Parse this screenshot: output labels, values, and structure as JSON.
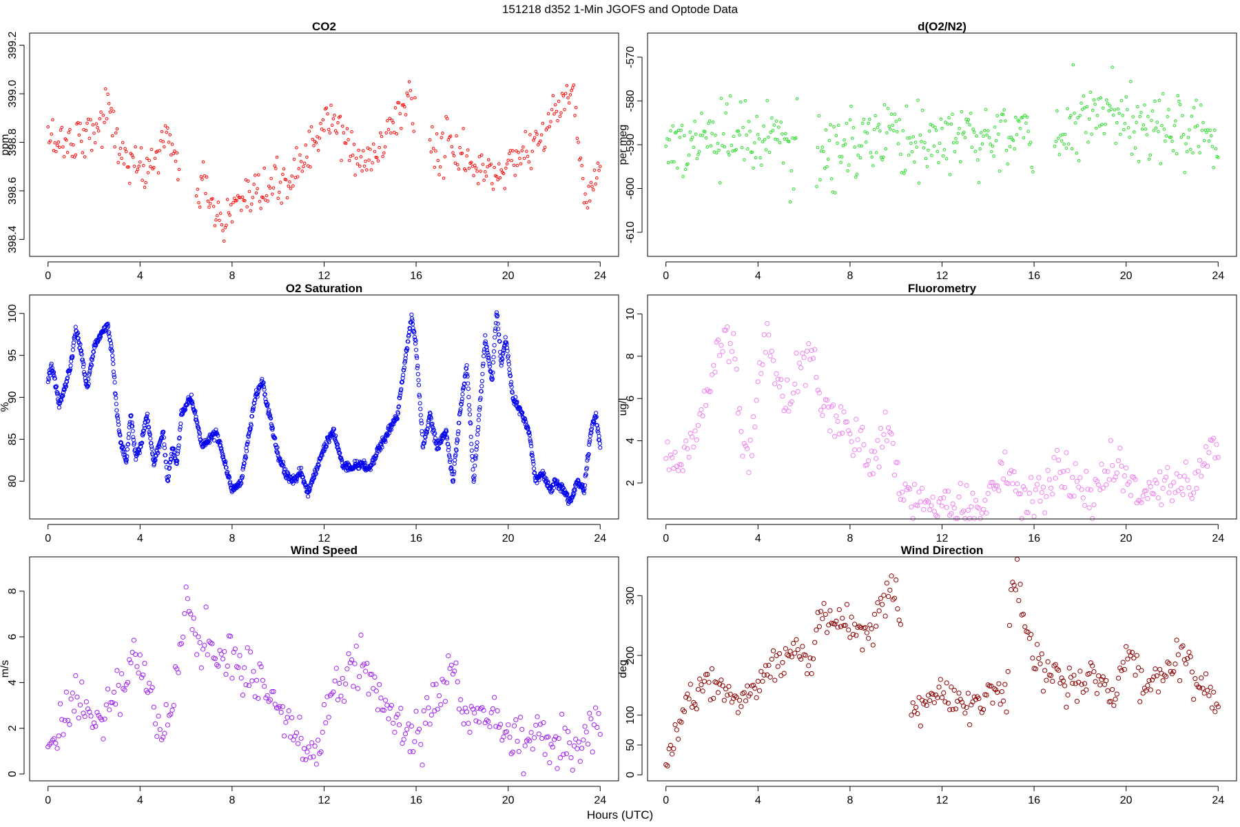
{
  "page": {
    "title": "151218   d352   1-Min  JGOFS and Optode Data",
    "xlabel": "Hours (UTC)"
  },
  "chart_data": [
    {
      "type": "scatter",
      "title": "CO2",
      "xlabel": "",
      "ylabel": "ppm",
      "xlim": [
        -0.8,
        24.8
      ],
      "ylim": [
        398.33,
        399.25
      ],
      "x_ticks": [
        0,
        4,
        8,
        12,
        16,
        20,
        24
      ],
      "y_ticks": [
        398.4,
        398.6,
        398.8,
        399.0,
        399.2
      ],
      "y_tick_labels": [
        "398.4",
        "398.6",
        "398.8",
        "399.0",
        "399.2"
      ],
      "y_tick_rotated": true,
      "color": "#ff0000",
      "marker_radius": 1.8,
      "noise": 0.045,
      "step_minutes": 3,
      "gaps": [
        [
          5.7,
          6.4
        ],
        [
          16.0,
          16.6
        ]
      ],
      "series": [
        {
          "x": [
            0,
            0.5,
            1,
            1.5,
            2,
            2.3,
            2.6,
            3,
            3.5,
            4,
            4.3,
            4.6,
            5,
            5.2,
            5.6,
            6.4,
            6.7,
            7,
            7.3,
            7.6,
            7.9,
            8.2,
            8.5,
            9,
            9.5,
            10,
            10.5,
            11,
            11.5,
            11.8,
            12,
            12.5,
            13,
            13.5,
            14,
            14.5,
            15,
            15.3,
            15.7,
            16,
            16.6,
            17,
            17.5,
            18,
            18.5,
            19,
            19.5,
            20,
            20.5,
            21,
            21.5,
            22,
            22.5,
            22.8,
            23,
            23.3,
            23.6,
            24
          ],
          "y": [
            398.82,
            398.81,
            398.8,
            398.84,
            398.85,
            398.88,
            398.95,
            398.8,
            398.72,
            398.68,
            398.7,
            398.72,
            398.8,
            398.85,
            398.72,
            398.55,
            398.62,
            398.6,
            398.5,
            398.44,
            398.5,
            398.55,
            398.52,
            398.56,
            398.6,
            398.62,
            398.65,
            398.72,
            398.78,
            398.84,
            398.88,
            398.87,
            398.8,
            398.72,
            398.72,
            398.78,
            398.9,
            398.92,
            399.0,
            398.88,
            398.78,
            398.76,
            398.8,
            398.74,
            398.68,
            398.7,
            398.66,
            398.7,
            398.76,
            398.78,
            398.85,
            398.9,
            398.98,
            399.05,
            398.8,
            398.62,
            398.65,
            398.7
          ]
        }
      ]
    },
    {
      "type": "scatter",
      "title": "d(O2/N2)",
      "xlabel": "",
      "ylabel": "per meg",
      "xlim": [
        -0.8,
        24.8
      ],
      "ylim": [
        -615.5,
        -564.5
      ],
      "x_ticks": [
        0,
        4,
        8,
        12,
        16,
        20,
        24
      ],
      "y_ticks": [
        -610,
        -600,
        -590,
        -580,
        -570
      ],
      "y_tick_labels": [
        "-610",
        "-600",
        "-590",
        "-580",
        "-570"
      ],
      "y_tick_rotated": true,
      "color": "#22dd22",
      "marker_radius": 1.8,
      "noise": 4.2,
      "step_minutes": 3,
      "gaps": [
        [
          5.7,
          6.5
        ],
        [
          16.0,
          16.9
        ]
      ],
      "series": [
        {
          "x": [
            0,
            1,
            2,
            3,
            4,
            5,
            5.7,
            6.5,
            7,
            8,
            9,
            10,
            11,
            12,
            13,
            14,
            15,
            16,
            16.9,
            17,
            18,
            19,
            20,
            21,
            22,
            23,
            24
          ],
          "y": [
            -590,
            -590,
            -589,
            -589,
            -590,
            -590,
            -590,
            -592,
            -592,
            -590,
            -588,
            -589,
            -589,
            -588,
            -587,
            -588,
            -588,
            -587,
            -586,
            -586,
            -585,
            -584,
            -585,
            -586,
            -587,
            -586,
            -587
          ]
        }
      ]
    },
    {
      "type": "scatter",
      "title": "O2 Saturation",
      "xlabel": "",
      "ylabel": "%",
      "xlim": [
        -0.8,
        24.8
      ],
      "ylim": [
        75.5,
        102.2
      ],
      "x_ticks": [
        0,
        4,
        8,
        12,
        16,
        20,
        24
      ],
      "y_ticks": [
        80,
        85,
        90,
        95,
        100
      ],
      "y_tick_labels": [
        "80",
        "85",
        "90",
        "95",
        "100"
      ],
      "y_tick_rotated": true,
      "color": "#0000ee",
      "marker_radius": 2.6,
      "noise": 0.25,
      "step_minutes": 1,
      "gaps": [],
      "series": [
        {
          "x": [
            0,
            0.15,
            0.3,
            0.5,
            0.8,
            1.0,
            1.2,
            1.4,
            1.7,
            2.0,
            2.3,
            2.6,
            2.8,
            3.0,
            3.2,
            3.4,
            3.6,
            3.8,
            4.0,
            4.3,
            4.6,
            5.0,
            5.2,
            5.4,
            5.6,
            5.8,
            6.0,
            6.2,
            6.4,
            6.7,
            7.0,
            7.3,
            7.6,
            8.0,
            8.4,
            8.7,
            9.0,
            9.3,
            9.6,
            10.0,
            10.3,
            10.6,
            11.0,
            11.3,
            11.6,
            12.0,
            12.4,
            12.8,
            13.2,
            13.6,
            14.0,
            14.4,
            14.8,
            15.2,
            15.5,
            15.8,
            16.0,
            16.3,
            16.6,
            16.9,
            17.3,
            17.6,
            17.9,
            18.2,
            18.5,
            18.8,
            19.0,
            19.3,
            19.5,
            19.7,
            19.9,
            20.2,
            20.6,
            20.9,
            21.2,
            21.5,
            21.8,
            22.1,
            22.4,
            22.7,
            23.0,
            23.3,
            23.6,
            23.8,
            24.0
          ],
          "y": [
            92,
            94,
            92,
            89,
            92,
            94,
            98,
            96,
            91,
            96,
            97.5,
            98.5,
            95,
            88,
            84,
            82.5,
            88,
            83,
            84,
            88,
            82,
            86,
            80,
            84,
            82,
            88,
            89,
            90,
            88,
            84,
            85,
            86,
            83,
            79,
            80,
            85,
            90,
            92,
            88,
            83,
            81,
            80,
            81,
            78.5,
            81,
            84,
            86,
            82,
            81.5,
            82,
            81.5,
            84,
            86,
            88,
            94,
            99.5,
            96,
            84,
            88,
            84,
            86,
            80,
            88,
            94,
            80,
            90,
            97,
            92,
            100.5,
            94,
            97,
            90,
            88,
            86,
            80,
            81,
            79,
            80,
            79,
            77.5,
            80,
            79,
            86,
            88,
            84
          ]
        }
      ]
    },
    {
      "type": "scatter",
      "title": "Fluorometry",
      "xlabel": "",
      "ylabel": "ug/l",
      "xlim": [
        -0.8,
        24.8
      ],
      "ylim": [
        0.3,
        10.9
      ],
      "x_ticks": [
        0,
        4,
        8,
        12,
        16,
        20,
        24
      ],
      "y_ticks": [
        2,
        4,
        6,
        8,
        10
      ],
      "y_tick_labels": [
        "2",
        "4",
        "6",
        "8",
        "10"
      ],
      "y_tick_rotated": true,
      "color": "#ee82ee",
      "marker_radius": 3.1,
      "noise": 0.55,
      "step_minutes": 4,
      "gaps": [],
      "series": [
        {
          "x": [
            0,
            0.3,
            0.6,
            1,
            1.4,
            1.8,
            2.2,
            2.6,
            3,
            3.3,
            3.6,
            4,
            4.4,
            4.8,
            5.2,
            5.6,
            6,
            6.4,
            6.8,
            7.2,
            7.6,
            8,
            8.4,
            8.8,
            9.2,
            9.6,
            10,
            10.3,
            10.6,
            11,
            11.5,
            12,
            12.5,
            13,
            13.5,
            14,
            14.4,
            14.8,
            15.2,
            15.6,
            16,
            16.5,
            17,
            17.5,
            18,
            18.4,
            18.8,
            19.2,
            19.6,
            20,
            20.5,
            21,
            21.5,
            22,
            22.5,
            23,
            23.5,
            24
          ],
          "y": [
            3,
            3,
            3.2,
            3.6,
            4.5,
            6.5,
            8,
            9.5,
            8,
            4.5,
            3,
            7,
            9,
            7,
            6,
            6.5,
            8,
            8.5,
            5.5,
            5,
            4.8,
            4.5,
            4,
            3.2,
            3.5,
            4.8,
            2.5,
            1.5,
            1.3,
            1.2,
            1.1,
            1.2,
            1,
            0.8,
            0.7,
            1,
            2,
            3,
            2.2,
            1.2,
            1.5,
            1.8,
            2.5,
            2.6,
            2,
            1.8,
            2.2,
            2.5,
            3,
            2.2,
            1.5,
            1.8,
            2,
            1.8,
            2,
            2.2,
            3.5,
            3.5
          ]
        }
      ]
    },
    {
      "type": "scatter",
      "title": "Wind Speed",
      "xlabel": "",
      "ylabel": "m/s",
      "xlim": [
        -0.8,
        24.8
      ],
      "ylim": [
        -0.3,
        9.5
      ],
      "x_ticks": [
        0,
        4,
        8,
        12,
        16,
        20,
        24
      ],
      "y_ticks": [
        0,
        2,
        4,
        6,
        8
      ],
      "y_tick_labels": [
        "0",
        "2",
        "4",
        "6",
        "8"
      ],
      "y_tick_rotated": true,
      "color": "#a020f0",
      "marker_radius": 3.1,
      "noise": 0.55,
      "step_minutes": 4,
      "gaps": [],
      "series": [
        {
          "x": [
            0,
            0.3,
            0.6,
            1,
            1.5,
            2,
            2.5,
            3,
            3.5,
            3.8,
            4,
            4.3,
            4.6,
            5,
            5.3,
            5.6,
            5.8,
            6,
            6.2,
            6.5,
            7,
            7.5,
            8,
            8.5,
            9,
            9.5,
            10,
            10.5,
            11,
            11.5,
            11.9,
            12,
            12.5,
            13,
            13.5,
            14,
            14.5,
            15,
            15.5,
            16,
            16.5,
            17,
            17.5,
            17.8,
            18,
            18.5,
            19,
            19.5,
            20,
            20.5,
            21,
            21.5,
            22,
            22.5,
            23,
            23.5,
            24
          ],
          "y": [
            1,
            1.5,
            2.2,
            3.2,
            3,
            2.3,
            2.5,
            3.5,
            4.2,
            4.8,
            5.2,
            4,
            3,
            1.5,
            2.5,
            5,
            6,
            8.2,
            6.5,
            5.5,
            5.8,
            5.5,
            5.2,
            4.5,
            4.5,
            3.5,
            2.5,
            2,
            1.5,
            1.5,
            1,
            2.5,
            4,
            4.5,
            4.8,
            4,
            3,
            2.5,
            1.5,
            1.5,
            2.5,
            3.5,
            4.2,
            4.6,
            2.5,
            2.5,
            2.7,
            2,
            1.8,
            1.5,
            1.5,
            1.8,
            1.3,
            1.2,
            1.2,
            1.5,
            2.5
          ]
        }
      ]
    },
    {
      "type": "scatter",
      "title": "Wind Direction",
      "xlabel": "",
      "ylabel": "deg",
      "xlim": [
        -0.8,
        24.8
      ],
      "ylim": [
        -10,
        365
      ],
      "x_ticks": [
        0,
        4,
        8,
        12,
        16,
        20,
        24
      ],
      "y_ticks": [
        0,
        50,
        100,
        200,
        300
      ],
      "y_tick_labels": [
        "0",
        "50",
        "100",
        "200",
        "300"
      ],
      "y_tick_rotated": true,
      "color": "#8b0000",
      "marker_radius": 3.1,
      "noise": 15,
      "step_minutes": 4,
      "gaps": [
        [
          10.2,
          10.6
        ]
      ],
      "series": [
        {
          "x": [
            0,
            0.3,
            0.6,
            1,
            1.5,
            2,
            2.5,
            3,
            3.5,
            4,
            4.3,
            4.6,
            5,
            5.3,
            5.6,
            6,
            6.3,
            6.6,
            7,
            7.5,
            8,
            8.5,
            9,
            9.5,
            10,
            10.2,
            10.6,
            11,
            11.5,
            12,
            12.5,
            13,
            13.5,
            14,
            14.5,
            14.8,
            15,
            15.3,
            15.6,
            16,
            16.5,
            17,
            17.5,
            18,
            18.5,
            19,
            19.5,
            20,
            20.3,
            20.6,
            21,
            21.5,
            22,
            22.5,
            23,
            23.5,
            24
          ],
          "y": [
            20,
            40,
            110,
            120,
            150,
            150,
            140,
            130,
            140,
            150,
            160,
            200,
            180,
            200,
            210,
            200,
            160,
            250,
            260,
            250,
            240,
            235,
            250,
            290,
            330,
            270,
            90,
            110,
            140,
            140,
            130,
            125,
            120,
            130,
            150,
            110,
            330,
            320,
            260,
            200,
            180,
            170,
            150,
            150,
            170,
            150,
            140,
            200,
            200,
            150,
            160,
            150,
            180,
            210,
            150,
            140,
            120
          ]
        }
      ]
    }
  ]
}
